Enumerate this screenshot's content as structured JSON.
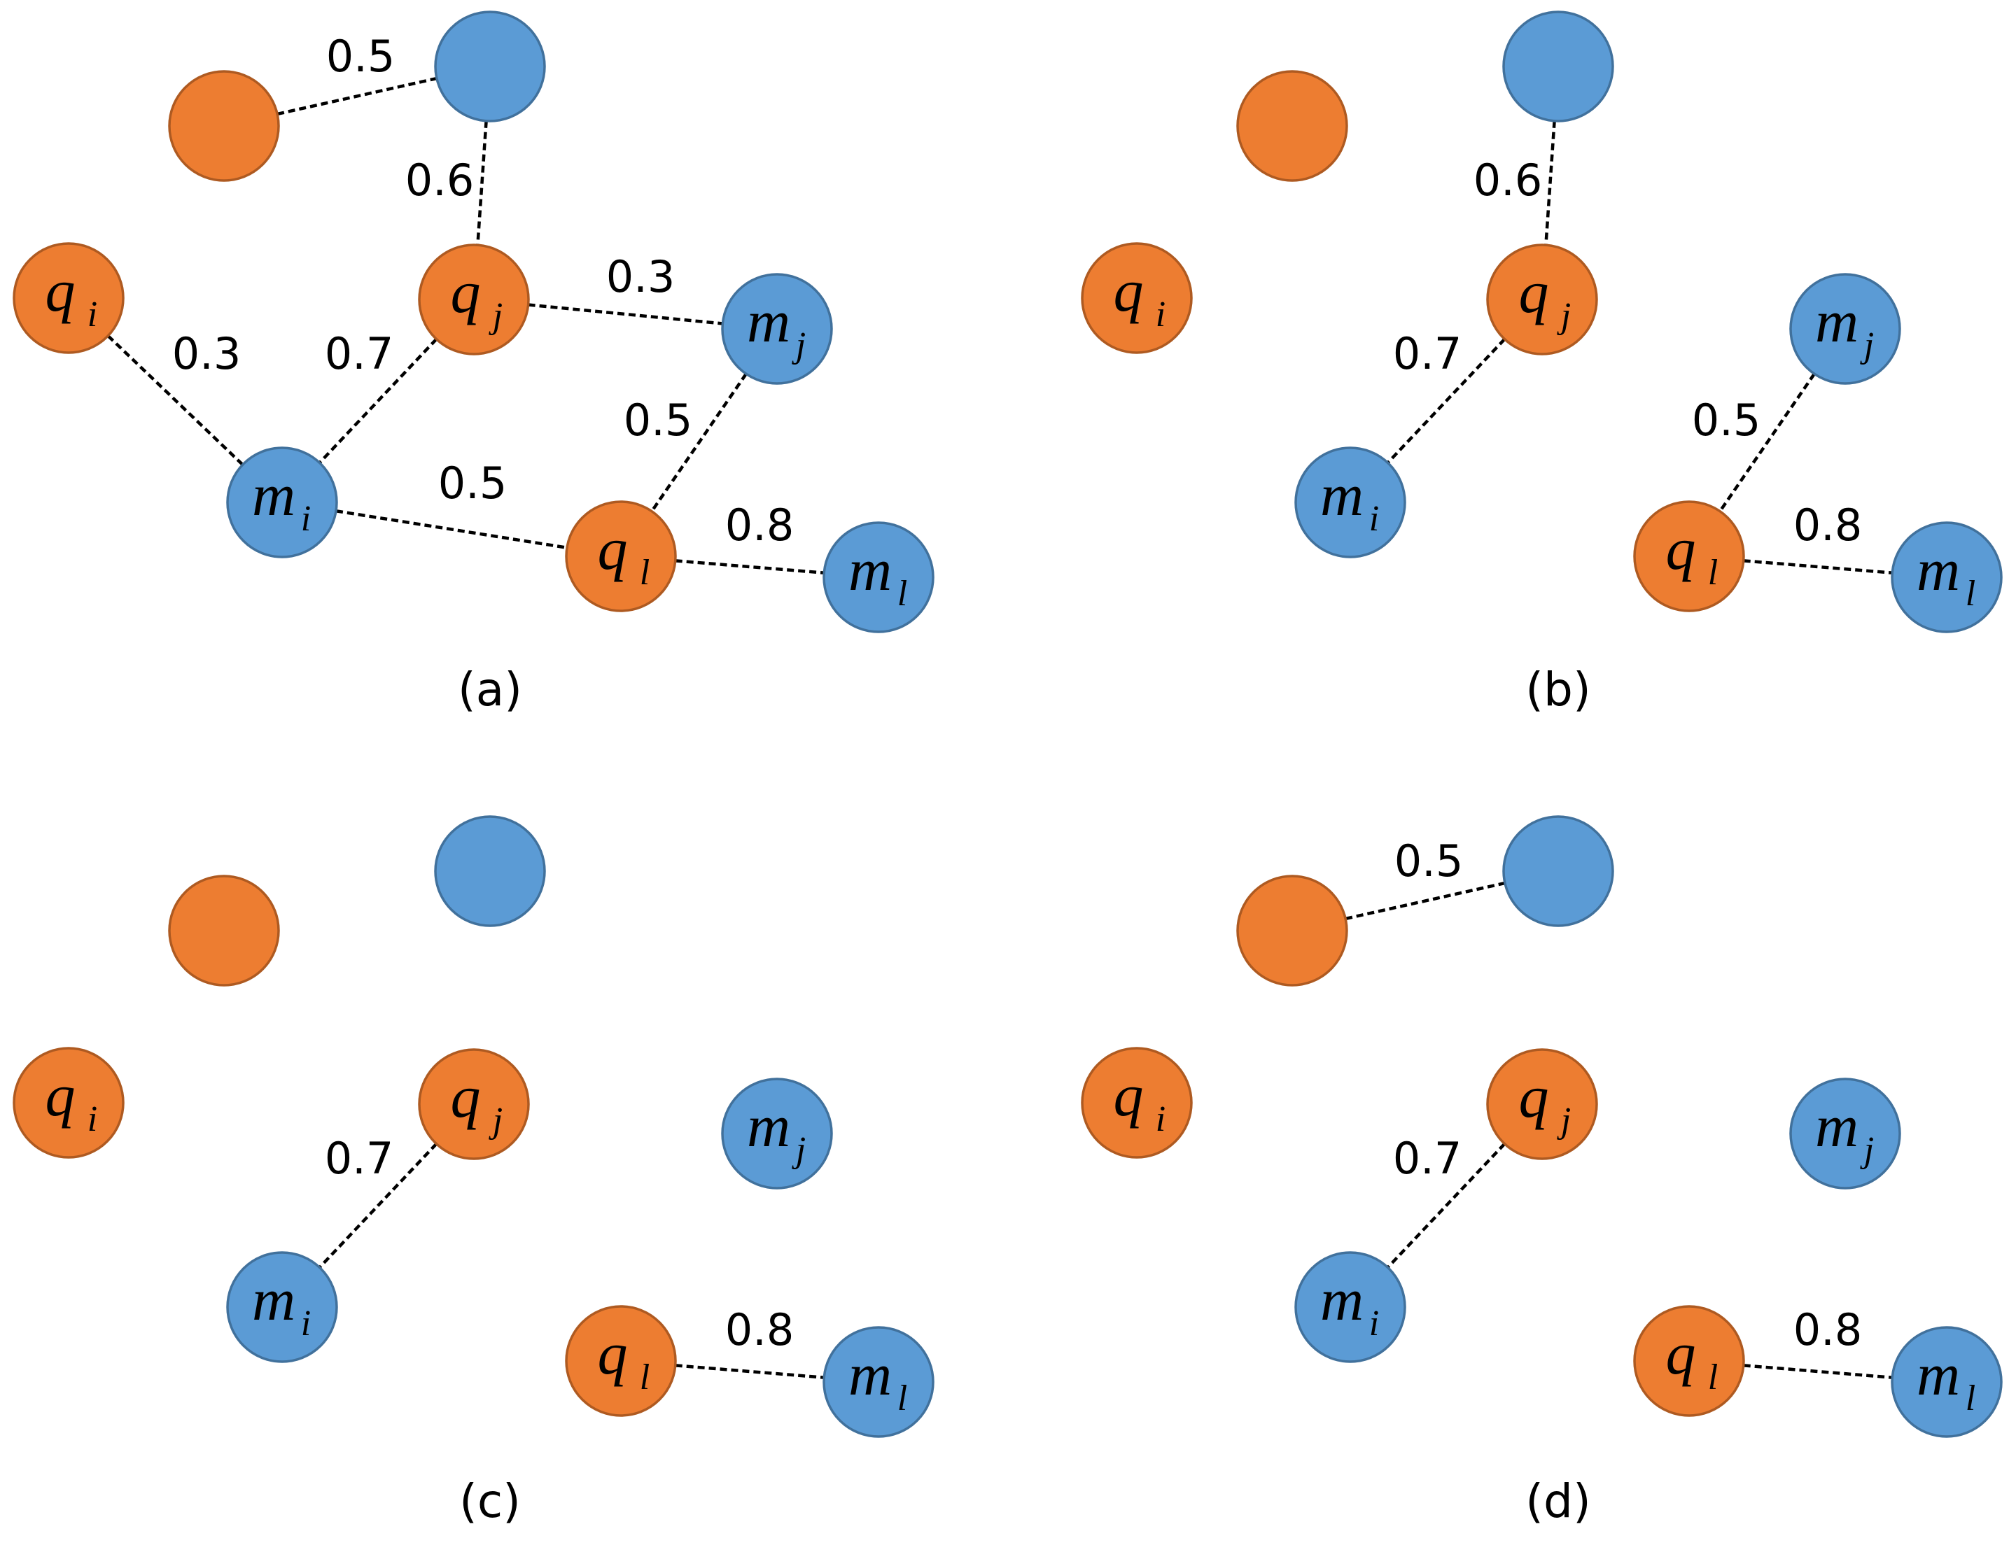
{
  "panels": [
    {
      "caption": "(a)",
      "edges": [
        {
          "from": "top_orange",
          "to": "top_blue",
          "weight": "0.5"
        },
        {
          "from": "top_blue",
          "to": "qj",
          "weight": "0.6"
        },
        {
          "from": "qi",
          "to": "mi",
          "weight": "0.3"
        },
        {
          "from": "qj",
          "to": "mi",
          "weight": "0.7"
        },
        {
          "from": "qj",
          "to": "mj",
          "weight": "0.3"
        },
        {
          "from": "mj",
          "to": "ql",
          "weight": "0.5"
        },
        {
          "from": "mi",
          "to": "ql",
          "weight": "0.5"
        },
        {
          "from": "ql",
          "to": "ml",
          "weight": "0.8"
        }
      ]
    },
    {
      "caption": "(b)",
      "edges": [
        {
          "from": "top_blue",
          "to": "qj",
          "weight": "0.6"
        },
        {
          "from": "qj",
          "to": "mi",
          "weight": "0.7"
        },
        {
          "from": "mj",
          "to": "ql",
          "weight": "0.5"
        },
        {
          "from": "ql",
          "to": "ml",
          "weight": "0.8"
        }
      ]
    },
    {
      "caption": "(c)",
      "edges": [
        {
          "from": "qj",
          "to": "mi",
          "weight": "0.7"
        },
        {
          "from": "ql",
          "to": "ml",
          "weight": "0.8"
        }
      ]
    },
    {
      "caption": "(d)",
      "edges": [
        {
          "from": "top_orange",
          "to": "top_blue",
          "weight": "0.5"
        },
        {
          "from": "qj",
          "to": "mi",
          "weight": "0.7"
        },
        {
          "from": "ql",
          "to": "ml",
          "weight": "0.8"
        }
      ]
    }
  ],
  "nodes": [
    {
      "id": "top_orange",
      "kind": "query",
      "color": "#ED7D31",
      "main": "",
      "sub": ""
    },
    {
      "id": "top_blue",
      "kind": "match",
      "color": "#5B9BD5",
      "main": "",
      "sub": ""
    },
    {
      "id": "qi",
      "kind": "query",
      "color": "#ED7D31",
      "main": "q",
      "sub": "i"
    },
    {
      "id": "qj",
      "kind": "query",
      "color": "#ED7D31",
      "main": "q",
      "sub": "j"
    },
    {
      "id": "mj",
      "kind": "match",
      "color": "#5B9BD5",
      "main": "m",
      "sub": "j"
    },
    {
      "id": "mi",
      "kind": "match",
      "color": "#5B9BD5",
      "main": "m",
      "sub": "i"
    },
    {
      "id": "ql",
      "kind": "query",
      "color": "#ED7D31",
      "main": "q",
      "sub": "l"
    },
    {
      "id": "ml",
      "kind": "match",
      "color": "#5B9BD5",
      "main": "m",
      "sub": "l"
    }
  ],
  "colors": {
    "orange": "#ED7D31",
    "blue": "#5B9BD5",
    "edge": "#000000"
  }
}
